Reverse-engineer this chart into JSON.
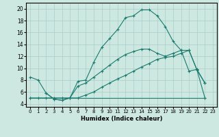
{
  "xlabel": "Humidex (Indice chaleur)",
  "xlim": [
    -0.5,
    23.5
  ],
  "ylim": [
    3.5,
    21
  ],
  "yticks": [
    4,
    6,
    8,
    10,
    12,
    14,
    16,
    18,
    20
  ],
  "xticks": [
    0,
    1,
    2,
    3,
    4,
    5,
    6,
    7,
    8,
    9,
    10,
    11,
    12,
    13,
    14,
    15,
    16,
    17,
    18,
    19,
    20,
    21,
    22,
    23
  ],
  "bg_color": "#cce8e0",
  "grid_color": "#aacccc",
  "line_color": "#1a7a6e",
  "series": [
    {
      "x": [
        0,
        1,
        2,
        3,
        4,
        5,
        6,
        7,
        8,
        9,
        10,
        11,
        12,
        13,
        14,
        15,
        16,
        17,
        18,
        19,
        20,
        21,
        22
      ],
      "y": [
        8.5,
        8.0,
        5.8,
        4.8,
        4.6,
        5.0,
        7.8,
        8.0,
        11.0,
        13.5,
        15.0,
        16.5,
        18.5,
        18.8,
        19.8,
        19.8,
        18.8,
        17.0,
        14.5,
        13.0,
        9.5,
        9.8,
        7.5
      ]
    },
    {
      "x": [
        0,
        22
      ],
      "y": [
        5.0,
        5.0
      ]
    },
    {
      "x": [
        2,
        3,
        4,
        5,
        6,
        7,
        8,
        9,
        10,
        11,
        12,
        13,
        14,
        15,
        16,
        17,
        18,
        19,
        20,
        21,
        22
      ],
      "y": [
        5.8,
        4.8,
        4.6,
        5.0,
        7.0,
        7.5,
        8.5,
        9.5,
        10.5,
        11.5,
        12.3,
        12.8,
        13.2,
        13.2,
        12.5,
        12.0,
        12.5,
        13.0,
        13.0,
        9.7,
        7.5
      ]
    },
    {
      "x": [
        0,
        1,
        2,
        3,
        4,
        5,
        6,
        7,
        8,
        9,
        10,
        11,
        12,
        13,
        14,
        15,
        16,
        17,
        18,
        19,
        20,
        21,
        22
      ],
      "y": [
        5.0,
        5.0,
        5.0,
        5.0,
        5.0,
        5.0,
        5.0,
        5.5,
        6.0,
        6.8,
        7.5,
        8.2,
        8.8,
        9.5,
        10.2,
        10.8,
        11.5,
        11.8,
        12.0,
        12.5,
        13.0,
        9.7,
        5.0
      ]
    }
  ]
}
